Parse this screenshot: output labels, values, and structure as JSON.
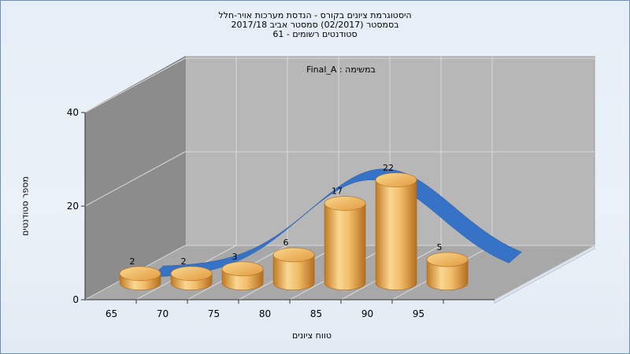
{
  "title_lines": [
    "היסטוגרמת ציונים בקורס - הנדסת מערכות אויר-חלל",
    "בסמסטר  (02/2017)  סמסטר אביב 2017/18",
    "סטודנטים רשומים - 61"
  ],
  "chart_data": {
    "type": "bar",
    "categories": [
      "65",
      "70",
      "75",
      "80",
      "85",
      "90",
      "95"
    ],
    "values": [
      2,
      2,
      3,
      6,
      17,
      22,
      5
    ],
    "data_labels": [
      "2",
      "2",
      "3",
      "6",
      "17",
      "22",
      "5"
    ],
    "legend_label": "במשימה : Final_A",
    "xlabel": "טווח ציונים",
    "ylabel": "מספר סטודנטים",
    "yticks": [
      "0",
      "20",
      "40"
    ],
    "ylim": [
      0,
      40
    ],
    "curve": "normal-distribution overlay (blue ribbon)",
    "grid": true,
    "style": "3d-cylinders",
    "colors": {
      "bar_light": "#f8d488",
      "bar_mid": "#e8a54a",
      "bar_dark": "#b56e1c",
      "curve": "#3570c4",
      "back_wall": "#b6b6b6",
      "side_wall": "#8a8a8a",
      "floor": "#a9a9a9"
    }
  }
}
